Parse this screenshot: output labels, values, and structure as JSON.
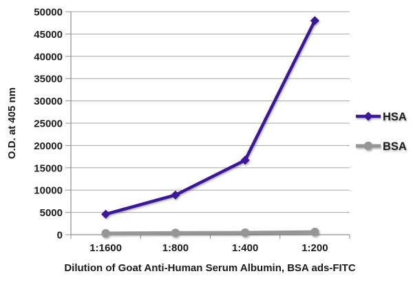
{
  "chart_data": {
    "type": "line",
    "title": "",
    "xlabel": "Dilution of Goat Anti-Human Serum Albumin, BSA ads-FITC",
    "ylabel": "O.D. at 405 nm",
    "categories": [
      "1:1600",
      "1:800",
      "1:400",
      "1:200"
    ],
    "series": [
      {
        "name": "HSA",
        "color": "#3a1397",
        "marker": "diamond",
        "line_width": 4.5,
        "values": [
          4600,
          8900,
          16700,
          48000
        ]
      },
      {
        "name": "BSA",
        "color": "#969696",
        "marker": "circle",
        "line_width": 5,
        "values": [
          300,
          400,
          450,
          600
        ]
      }
    ],
    "ylim": [
      0,
      50000
    ],
    "ytick_step": 5000,
    "ytick_labels": [
      "0",
      "5000",
      "10000",
      "15000",
      "20000",
      "25000",
      "30000",
      "35000",
      "40000",
      "45000",
      "50000"
    ],
    "grid": "horizontal",
    "legend_position": "right"
  },
  "style": {
    "background": "#ffffff",
    "grid_color": "#a6a6a6",
    "axis_color": "#8c8c8c",
    "text_color": "#1a1a1a",
    "hsa_color": "#3a1397",
    "bsa_color": "#969696"
  }
}
